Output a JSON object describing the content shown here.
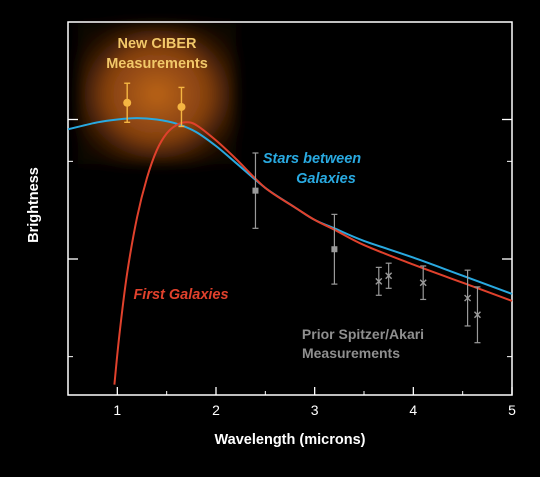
{
  "chart_data": {
    "type": "line",
    "title": "",
    "xlabel": "Wavelength (microns)",
    "ylabel": "Brightness",
    "xlim": [
      0.5,
      5
    ],
    "x_ticks": [
      "1",
      "2",
      "3",
      "4",
      "5"
    ],
    "y_log_decades": 2.0,
    "grid": false,
    "colors": {
      "background": "#000000",
      "axis": "#ffffff",
      "stars": "#29a9e0",
      "galaxies": "#e0412c",
      "ciber": "#f5b642",
      "prior": "#9a9a9a",
      "ciber_label": "#f2c869"
    },
    "annotations": {
      "ciber": [
        "New CIBER",
        "Measurements"
      ],
      "stars": [
        "Stars between",
        "Galaxies"
      ],
      "galaxies": "First Galaxies",
      "prior": [
        "Prior Spitzer/Akari",
        "Measurements"
      ]
    },
    "series": [
      {
        "key": "stars",
        "name": "Stars between Galaxies",
        "x": [
          0.5,
          0.8,
          1.0,
          1.2,
          1.4,
          1.6,
          1.8,
          2.0,
          2.2,
          2.5,
          2.8,
          3.0,
          3.2,
          3.5,
          4.0,
          4.5,
          5.0
        ],
        "y": [
          0.93,
          0.98,
          1.0,
          1.01,
          1.0,
          0.97,
          0.91,
          0.81,
          0.69,
          0.51,
          0.37,
          0.28,
          0.22,
          0.13,
          0.01,
          -0.12,
          -0.25
        ]
      },
      {
        "key": "galaxies",
        "name": "First Galaxies",
        "x": [
          0.97,
          1.02,
          1.1,
          1.2,
          1.3,
          1.4,
          1.5,
          1.6,
          1.7,
          1.8,
          2.0,
          2.2,
          2.5,
          2.8,
          3.0,
          3.2,
          3.5,
          4.0,
          4.5,
          5.0
        ],
        "y": [
          -0.9,
          -0.55,
          -0.1,
          0.3,
          0.58,
          0.78,
          0.9,
          0.96,
          0.98,
          0.96,
          0.85,
          0.72,
          0.51,
          0.37,
          0.28,
          0.21,
          0.1,
          -0.04,
          -0.17,
          -0.3
        ]
      }
    ],
    "ciber_points": [
      {
        "x": 1.1,
        "y": 1.12,
        "err": 0.14
      },
      {
        "x": 1.65,
        "y": 1.09,
        "err": 0.14
      }
    ],
    "prior_points": [
      {
        "x": 2.4,
        "y": 0.49,
        "err": 0.27,
        "marker": "square"
      },
      {
        "x": 3.2,
        "y": 0.07,
        "err": 0.25,
        "marker": "square"
      },
      {
        "x": 3.65,
        "y": -0.16,
        "err": 0.1,
        "marker": "x"
      },
      {
        "x": 3.75,
        "y": -0.12,
        "err": 0.09,
        "marker": "x"
      },
      {
        "x": 4.1,
        "y": -0.17,
        "err": 0.12,
        "marker": "x"
      },
      {
        "x": 4.55,
        "y": -0.28,
        "err": 0.2,
        "marker": "x"
      },
      {
        "x": 4.65,
        "y": -0.4,
        "err": 0.2,
        "marker": "x"
      }
    ]
  }
}
